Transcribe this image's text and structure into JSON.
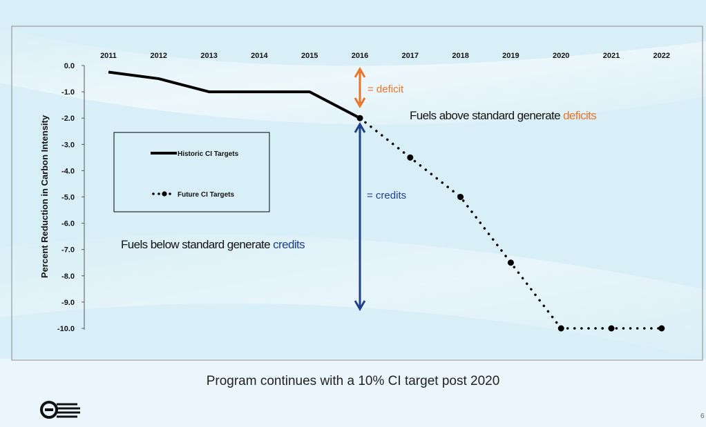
{
  "caption": "Program continues with a 10% CI target post 2020",
  "page_number": "6",
  "logo": "circle-slash-logo",
  "colors": {
    "deficit": "#e8742a",
    "credits": "#1f3f86",
    "line": "#000000",
    "plot_border": "#8a8a8a"
  },
  "chart_data": {
    "type": "line",
    "title": "",
    "xlabel": "",
    "ylabel": "Percent Reduction in Carbon Intensity",
    "x_axis_position": "top",
    "categories": [
      "2011",
      "2012",
      "2013",
      "2014",
      "2015",
      "2016",
      "2017",
      "2018",
      "2019",
      "2020",
      "2021",
      "2022"
    ],
    "ylim": [
      -10.0,
      0.0
    ],
    "yticks": [
      "0.0",
      "-1.0",
      "-2.0",
      "-3.0",
      "-4.0",
      "-5.0",
      "-6.0",
      "-7.0",
      "-8.0",
      "-9.0",
      "-10.0"
    ],
    "grid": false,
    "legend_placement": "left",
    "series": [
      {
        "name": "Historic CI Targets",
        "style": "solid",
        "x": [
          "2011",
          "2012",
          "2013",
          "2014",
          "2015",
          "2016"
        ],
        "values": [
          -0.25,
          -0.5,
          -1.0,
          -1.0,
          -1.0,
          -2.0
        ]
      },
      {
        "name": "Future CI Targets",
        "style": "dotted",
        "x": [
          "2016",
          "2017",
          "2018",
          "2019",
          "2020",
          "2021",
          "2022"
        ],
        "values": [
          -2.0,
          -3.5,
          -5.0,
          -7.5,
          -10.0,
          -10.0,
          -10.0
        ]
      }
    ],
    "annotations": [
      {
        "id": "deficit",
        "text": "= deficit"
      },
      {
        "id": "credits",
        "text": "= credits"
      },
      {
        "id": "above",
        "prefix": "Fuels above standard generate ",
        "highlight": "deficits"
      },
      {
        "id": "below",
        "prefix": "Fuels below standard generate ",
        "highlight": "credits"
      }
    ]
  }
}
